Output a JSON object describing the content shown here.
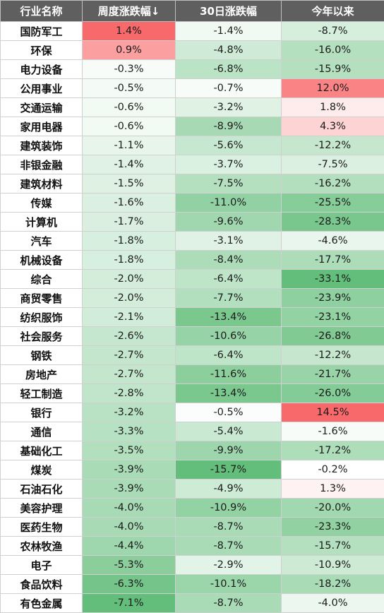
{
  "chart_data": {
    "type": "table",
    "columns": [
      "行业名称",
      "周度涨跌幅↓",
      "30日涨跌幅",
      "今年以来"
    ],
    "rows": [
      [
        "国防军工",
        "1.4%",
        "-1.4%",
        "-8.7%"
      ],
      [
        "环保",
        "0.9%",
        "-4.8%",
        "-16.0%"
      ],
      [
        "电力设备",
        "-0.3%",
        "-6.8%",
        "-15.9%"
      ],
      [
        "公用事业",
        "-0.5%",
        "-0.7%",
        "12.0%"
      ],
      [
        "交通运输",
        "-0.6%",
        "-3.2%",
        "1.8%"
      ],
      [
        "家用电器",
        "-0.6%",
        "-8.9%",
        "4.3%"
      ],
      [
        "建筑装饰",
        "-1.1%",
        "-5.6%",
        "-12.2%"
      ],
      [
        "非银金融",
        "-1.4%",
        "-3.7%",
        "-7.5%"
      ],
      [
        "建筑材料",
        "-1.5%",
        "-7.5%",
        "-16.2%"
      ],
      [
        "传媒",
        "-1.6%",
        "-11.0%",
        "-25.5%"
      ],
      [
        "计算机",
        "-1.7%",
        "-9.6%",
        "-28.3%"
      ],
      [
        "汽车",
        "-1.8%",
        "-3.1%",
        "-4.6%"
      ],
      [
        "机械设备",
        "-1.8%",
        "-8.4%",
        "-17.7%"
      ],
      [
        "综合",
        "-2.0%",
        "-6.4%",
        "-33.1%"
      ],
      [
        "商贸零售",
        "-2.0%",
        "-7.7%",
        "-23.9%"
      ],
      [
        "纺织服饰",
        "-2.1%",
        "-13.4%",
        "-23.1%"
      ],
      [
        "社会服务",
        "-2.6%",
        "-10.6%",
        "-26.8%"
      ],
      [
        "钢铁",
        "-2.7%",
        "-6.4%",
        "-12.2%"
      ],
      [
        "房地产",
        "-2.7%",
        "-11.6%",
        "-21.7%"
      ],
      [
        "轻工制造",
        "-2.8%",
        "-13.4%",
        "-26.0%"
      ],
      [
        "银行",
        "-3.2%",
        "-0.5%",
        "14.5%"
      ],
      [
        "通信",
        "-3.3%",
        "-5.4%",
        "-1.6%"
      ],
      [
        "基础化工",
        "-3.5%",
        "-9.9%",
        "-17.2%"
      ],
      [
        "煤炭",
        "-3.9%",
        "-15.7%",
        "-0.2%"
      ],
      [
        "石油石化",
        "-3.9%",
        "-4.9%",
        "1.3%"
      ],
      [
        "美容护理",
        "-4.0%",
        "-10.9%",
        "-20.0%"
      ],
      [
        "医药生物",
        "-4.0%",
        "-8.7%",
        "-23.3%"
      ],
      [
        "农林牧渔",
        "-4.4%",
        "-8.7%",
        "-15.7%"
      ],
      [
        "电子",
        "-5.3%",
        "-2.9%",
        "-10.9%"
      ],
      [
        "食品饮料",
        "-6.3%",
        "-10.1%",
        "-18.2%"
      ],
      [
        "有色金属",
        "-7.1%",
        "-8.7%",
        "-4.0%"
      ]
    ]
  },
  "colors": {
    "header_bg": "#5f5f5f",
    "header_text": "#ffffff",
    "positive": "#f8696b",
    "negative": "#63be7b",
    "neutral": "#ffffff"
  }
}
